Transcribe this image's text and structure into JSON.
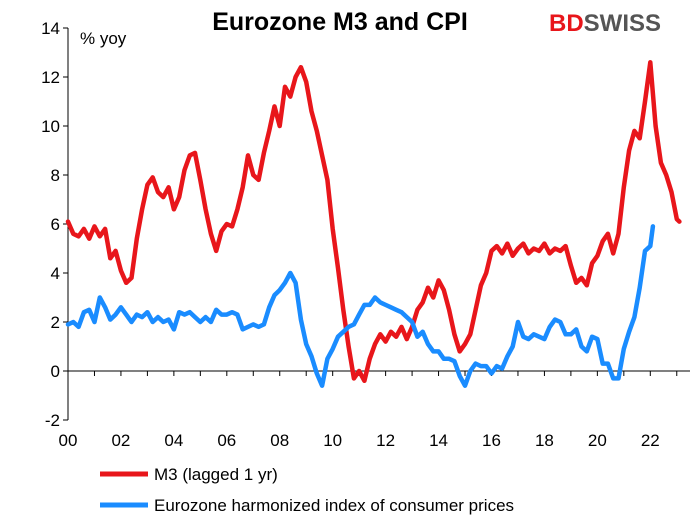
{
  "colors": {
    "m3": "#e8161b",
    "hicp": "#1a8cff",
    "logo_red": "#e8161b",
    "logo_dark": "#555555"
  },
  "logo": {
    "part1": "BD",
    "part2": "SWISS"
  },
  "chart_data": {
    "type": "line",
    "title": "Eurozone M3 and CPI",
    "ylabel": "% yoy",
    "xlabel": "",
    "ylim": [
      -2,
      14
    ],
    "yticks": [
      -2,
      0,
      2,
      4,
      6,
      8,
      10,
      12,
      14
    ],
    "xlim": [
      2000,
      2023.5
    ],
    "xticks": [
      {
        "value": 2000,
        "label": "00"
      },
      {
        "value": 2002,
        "label": "02"
      },
      {
        "value": 2004,
        "label": "04"
      },
      {
        "value": 2006,
        "label": "06"
      },
      {
        "value": 2008,
        "label": "08"
      },
      {
        "value": 2010,
        "label": "10"
      },
      {
        "value": 2012,
        "label": "12"
      },
      {
        "value": 2014,
        "label": "14"
      },
      {
        "value": 2016,
        "label": "16"
      },
      {
        "value": 2018,
        "label": "18"
      },
      {
        "value": 2020,
        "label": "20"
      },
      {
        "value": 2022,
        "label": "22"
      }
    ],
    "legend_position": "bottom-left",
    "grid": false,
    "series": [
      {
        "name": "M3 (lagged 1 yr)",
        "color_key": "m3",
        "points": [
          [
            2000.0,
            6.1
          ],
          [
            2000.2,
            5.6
          ],
          [
            2000.4,
            5.5
          ],
          [
            2000.6,
            5.8
          ],
          [
            2000.8,
            5.4
          ],
          [
            2001.0,
            5.9
          ],
          [
            2001.2,
            5.5
          ],
          [
            2001.4,
            5.8
          ],
          [
            2001.6,
            4.6
          ],
          [
            2001.8,
            4.9
          ],
          [
            2002.0,
            4.1
          ],
          [
            2002.2,
            3.6
          ],
          [
            2002.4,
            3.8
          ],
          [
            2002.6,
            5.4
          ],
          [
            2002.8,
            6.6
          ],
          [
            2003.0,
            7.6
          ],
          [
            2003.2,
            7.9
          ],
          [
            2003.4,
            7.3
          ],
          [
            2003.6,
            7.1
          ],
          [
            2003.8,
            7.5
          ],
          [
            2004.0,
            6.6
          ],
          [
            2004.2,
            7.1
          ],
          [
            2004.4,
            8.2
          ],
          [
            2004.6,
            8.8
          ],
          [
            2004.8,
            8.9
          ],
          [
            2005.0,
            7.8
          ],
          [
            2005.2,
            6.6
          ],
          [
            2005.4,
            5.6
          ],
          [
            2005.6,
            4.9
          ],
          [
            2005.8,
            5.7
          ],
          [
            2006.0,
            6.0
          ],
          [
            2006.2,
            5.9
          ],
          [
            2006.4,
            6.6
          ],
          [
            2006.6,
            7.5
          ],
          [
            2006.8,
            8.8
          ],
          [
            2007.0,
            8.0
          ],
          [
            2007.2,
            7.8
          ],
          [
            2007.4,
            8.9
          ],
          [
            2007.6,
            9.8
          ],
          [
            2007.8,
            10.8
          ],
          [
            2008.0,
            10.0
          ],
          [
            2008.2,
            11.6
          ],
          [
            2008.4,
            11.2
          ],
          [
            2008.6,
            12.0
          ],
          [
            2008.8,
            12.4
          ],
          [
            2009.0,
            11.8
          ],
          [
            2009.2,
            10.6
          ],
          [
            2009.4,
            9.8
          ],
          [
            2009.6,
            8.8
          ],
          [
            2009.8,
            7.8
          ],
          [
            2010.0,
            5.8
          ],
          [
            2010.2,
            4.2
          ],
          [
            2010.4,
            2.5
          ],
          [
            2010.6,
            1.0
          ],
          [
            2010.8,
            -0.3
          ],
          [
            2011.0,
            0.0
          ],
          [
            2011.2,
            -0.4
          ],
          [
            2011.4,
            0.5
          ],
          [
            2011.6,
            1.1
          ],
          [
            2011.8,
            1.5
          ],
          [
            2012.0,
            1.2
          ],
          [
            2012.2,
            1.6
          ],
          [
            2012.4,
            1.4
          ],
          [
            2012.6,
            1.8
          ],
          [
            2012.8,
            1.3
          ],
          [
            2013.0,
            1.8
          ],
          [
            2013.2,
            2.5
          ],
          [
            2013.4,
            2.8
          ],
          [
            2013.6,
            3.4
          ],
          [
            2013.8,
            3.0
          ],
          [
            2014.0,
            3.7
          ],
          [
            2014.2,
            3.3
          ],
          [
            2014.4,
            2.5
          ],
          [
            2014.6,
            1.5
          ],
          [
            2014.8,
            0.8
          ],
          [
            2015.0,
            1.1
          ],
          [
            2015.2,
            1.5
          ],
          [
            2015.4,
            2.5
          ],
          [
            2015.6,
            3.5
          ],
          [
            2015.8,
            4.0
          ],
          [
            2016.0,
            4.9
          ],
          [
            2016.2,
            5.1
          ],
          [
            2016.4,
            4.8
          ],
          [
            2016.6,
            5.2
          ],
          [
            2016.8,
            4.7
          ],
          [
            2017.0,
            5.0
          ],
          [
            2017.2,
            5.2
          ],
          [
            2017.4,
            4.8
          ],
          [
            2017.6,
            5.0
          ],
          [
            2017.8,
            4.9
          ],
          [
            2018.0,
            5.2
          ],
          [
            2018.2,
            4.8
          ],
          [
            2018.4,
            5.0
          ],
          [
            2018.6,
            4.9
          ],
          [
            2018.8,
            5.1
          ],
          [
            2019.0,
            4.3
          ],
          [
            2019.2,
            3.6
          ],
          [
            2019.4,
            3.8
          ],
          [
            2019.6,
            3.5
          ],
          [
            2019.8,
            4.4
          ],
          [
            2020.0,
            4.7
          ],
          [
            2020.2,
            5.3
          ],
          [
            2020.4,
            5.6
          ],
          [
            2020.6,
            4.8
          ],
          [
            2020.8,
            5.6
          ],
          [
            2021.0,
            7.5
          ],
          [
            2021.2,
            9.0
          ],
          [
            2021.4,
            9.8
          ],
          [
            2021.6,
            9.5
          ],
          [
            2021.8,
            11.0
          ],
          [
            2022.0,
            12.6
          ],
          [
            2022.2,
            10.0
          ],
          [
            2022.4,
            8.5
          ],
          [
            2022.6,
            8.0
          ],
          [
            2022.8,
            7.3
          ],
          [
            2023.0,
            6.2
          ],
          [
            2023.1,
            6.1
          ]
        ]
      },
      {
        "name": "Eurozone harmonized index of consumer prices",
        "color_key": "hicp",
        "points": [
          [
            2000.0,
            1.9
          ],
          [
            2000.2,
            2.0
          ],
          [
            2000.4,
            1.8
          ],
          [
            2000.6,
            2.4
          ],
          [
            2000.8,
            2.5
          ],
          [
            2001.0,
            2.0
          ],
          [
            2001.2,
            3.0
          ],
          [
            2001.4,
            2.6
          ],
          [
            2001.6,
            2.1
          ],
          [
            2001.8,
            2.3
          ],
          [
            2002.0,
            2.6
          ],
          [
            2002.2,
            2.3
          ],
          [
            2002.4,
            2.0
          ],
          [
            2002.6,
            2.3
          ],
          [
            2002.8,
            2.2
          ],
          [
            2003.0,
            2.4
          ],
          [
            2003.2,
            2.0
          ],
          [
            2003.4,
            2.2
          ],
          [
            2003.6,
            2.0
          ],
          [
            2003.8,
            2.1
          ],
          [
            2004.0,
            1.7
          ],
          [
            2004.2,
            2.4
          ],
          [
            2004.4,
            2.3
          ],
          [
            2004.6,
            2.4
          ],
          [
            2004.8,
            2.2
          ],
          [
            2005.0,
            2.0
          ],
          [
            2005.2,
            2.2
          ],
          [
            2005.4,
            2.0
          ],
          [
            2005.6,
            2.5
          ],
          [
            2005.8,
            2.3
          ],
          [
            2006.0,
            2.3
          ],
          [
            2006.2,
            2.4
          ],
          [
            2006.4,
            2.3
          ],
          [
            2006.6,
            1.7
          ],
          [
            2006.8,
            1.8
          ],
          [
            2007.0,
            1.9
          ],
          [
            2007.2,
            1.8
          ],
          [
            2007.4,
            1.9
          ],
          [
            2007.6,
            2.6
          ],
          [
            2007.8,
            3.1
          ],
          [
            2008.0,
            3.3
          ],
          [
            2008.2,
            3.6
          ],
          [
            2008.4,
            4.0
          ],
          [
            2008.6,
            3.6
          ],
          [
            2008.8,
            2.1
          ],
          [
            2009.0,
            1.1
          ],
          [
            2009.2,
            0.6
          ],
          [
            2009.4,
            -0.1
          ],
          [
            2009.6,
            -0.6
          ],
          [
            2009.8,
            0.5
          ],
          [
            2010.0,
            0.9
          ],
          [
            2010.2,
            1.4
          ],
          [
            2010.4,
            1.6
          ],
          [
            2010.6,
            1.8
          ],
          [
            2010.8,
            1.9
          ],
          [
            2011.0,
            2.3
          ],
          [
            2011.2,
            2.7
          ],
          [
            2011.4,
            2.7
          ],
          [
            2011.6,
            3.0
          ],
          [
            2011.8,
            2.8
          ],
          [
            2012.0,
            2.7
          ],
          [
            2012.2,
            2.6
          ],
          [
            2012.4,
            2.5
          ],
          [
            2012.6,
            2.4
          ],
          [
            2012.8,
            2.2
          ],
          [
            2013.0,
            2.0
          ],
          [
            2013.2,
            1.4
          ],
          [
            2013.4,
            1.6
          ],
          [
            2013.6,
            1.1
          ],
          [
            2013.8,
            0.8
          ],
          [
            2014.0,
            0.8
          ],
          [
            2014.2,
            0.5
          ],
          [
            2014.4,
            0.5
          ],
          [
            2014.6,
            0.4
          ],
          [
            2014.8,
            -0.2
          ],
          [
            2015.0,
            -0.6
          ],
          [
            2015.2,
            0.0
          ],
          [
            2015.4,
            0.3
          ],
          [
            2015.6,
            0.2
          ],
          [
            2015.8,
            0.2
          ],
          [
            2016.0,
            -0.1
          ],
          [
            2016.2,
            0.2
          ],
          [
            2016.4,
            0.1
          ],
          [
            2016.6,
            0.6
          ],
          [
            2016.8,
            1.0
          ],
          [
            2017.0,
            2.0
          ],
          [
            2017.2,
            1.4
          ],
          [
            2017.4,
            1.3
          ],
          [
            2017.6,
            1.5
          ],
          [
            2017.8,
            1.4
          ],
          [
            2018.0,
            1.3
          ],
          [
            2018.2,
            1.8
          ],
          [
            2018.4,
            2.1
          ],
          [
            2018.6,
            2.0
          ],
          [
            2018.8,
            1.5
          ],
          [
            2019.0,
            1.5
          ],
          [
            2019.2,
            1.7
          ],
          [
            2019.4,
            1.0
          ],
          [
            2019.6,
            0.8
          ],
          [
            2019.8,
            1.4
          ],
          [
            2020.0,
            1.3
          ],
          [
            2020.2,
            0.3
          ],
          [
            2020.4,
            0.3
          ],
          [
            2020.6,
            -0.3
          ],
          [
            2020.8,
            -0.3
          ],
          [
            2021.0,
            0.9
          ],
          [
            2021.2,
            1.6
          ],
          [
            2021.4,
            2.2
          ],
          [
            2021.6,
            3.4
          ],
          [
            2021.8,
            4.9
          ],
          [
            2022.0,
            5.1
          ],
          [
            2022.1,
            5.9
          ]
        ]
      }
    ]
  }
}
